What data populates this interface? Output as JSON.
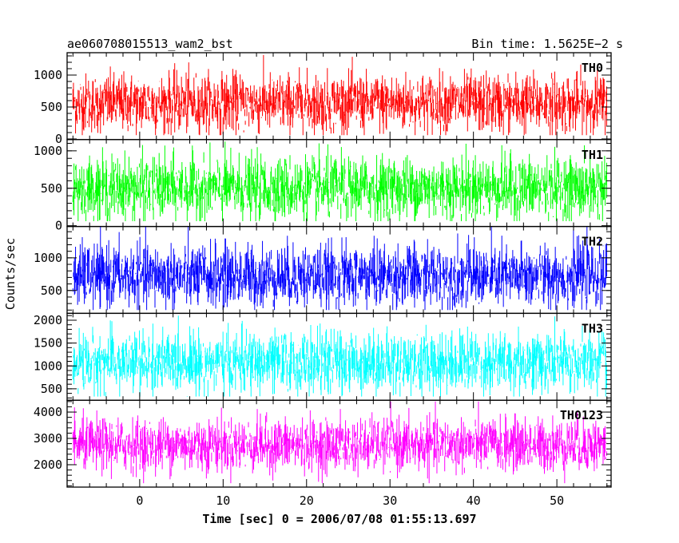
{
  "chart_data": {
    "type": "line",
    "title": "ae060708015513_wam2_bst",
    "bin_time_label": "Bin time: 1.5625E−2 s",
    "xlabel": "Time [sec] 0 = 2006/07/08 01:55:13.697",
    "ylabel": "Counts/sec",
    "xlim": [
      -8.7,
      56.5
    ],
    "x_ticks": [
      0,
      10,
      20,
      30,
      40,
      50
    ],
    "x_tick_labels": [
      "0",
      "10",
      "20",
      "30",
      "40",
      "50"
    ],
    "data_x_range": [
      -8.0,
      56.0
    ],
    "panels": [
      {
        "label": "TH0",
        "color": "#ff0000",
        "ylim": [
          -10,
          1350
        ],
        "y_ticks": [
          0,
          500,
          1000
        ],
        "y_tick_labels": [
          "0",
          "500",
          "1000"
        ],
        "mean": 560,
        "spread": 230,
        "min": 60,
        "max": 1350
      },
      {
        "label": "TH1",
        "color": "#00ff00",
        "ylim": [
          -10,
          1150
        ],
        "y_ticks": [
          0,
          500,
          1000
        ],
        "y_tick_labels": [
          "0",
          "500",
          "1000"
        ],
        "mean": 500,
        "spread": 210,
        "min": 60,
        "max": 1150
      },
      {
        "label": "TH2",
        "color": "#0000ff",
        "ylim": [
          150,
          1480
        ],
        "y_ticks": [
          500,
          1000
        ],
        "y_tick_labels": [
          "500",
          "1000"
        ],
        "mean": 720,
        "spread": 240,
        "min": 200,
        "max": 1480
      },
      {
        "label": "TH3",
        "color": "#00ffff",
        "ylim": [
          250,
          2150
        ],
        "y_ticks": [
          500,
          1000,
          1500,
          2000
        ],
        "y_tick_labels": [
          "500",
          "1000",
          "1500",
          "2000"
        ],
        "mean": 1080,
        "spread": 330,
        "min": 330,
        "max": 2100
      },
      {
        "label": "TH0123",
        "color": "#ff00ff",
        "ylim": [
          1150,
          4450
        ],
        "y_ticks": [
          2000,
          3000,
          4000
        ],
        "y_tick_labels": [
          "2000",
          "3000",
          "4000"
        ],
        "mean": 2750,
        "spread": 500,
        "min": 1300,
        "max": 4400
      }
    ]
  }
}
